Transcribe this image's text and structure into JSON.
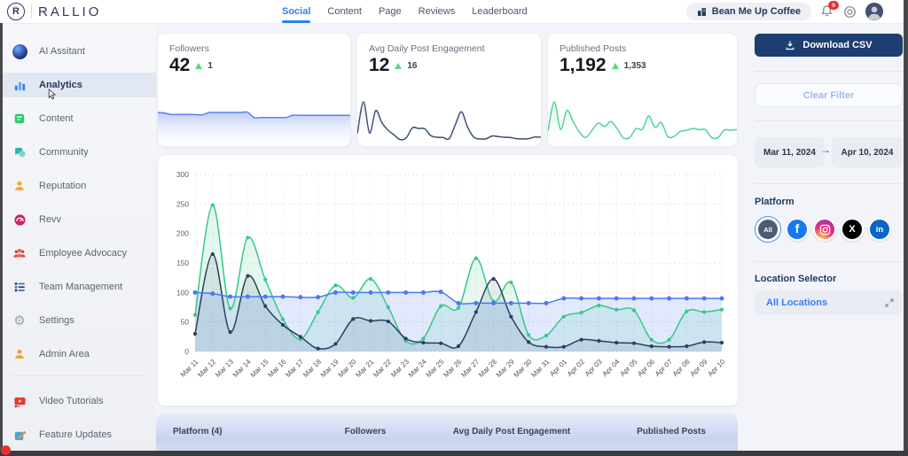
{
  "topbar": {
    "brand": "RALLIO",
    "logo_letter": "R",
    "tabs": [
      {
        "label": "Social",
        "active": true
      },
      {
        "label": "Content",
        "active": false
      },
      {
        "label": "Page",
        "active": false
      },
      {
        "label": "Reviews",
        "active": false
      },
      {
        "label": "Leaderboard",
        "active": false
      }
    ],
    "account_button": "Bean Me Up Coffee",
    "notification_count": "9"
  },
  "sidebar": {
    "items": [
      {
        "label": "AI Assitant",
        "icon": "ai-orb",
        "active": false
      },
      {
        "label": "Analytics",
        "icon": "bar-chart",
        "active": true
      },
      {
        "label": "Content",
        "icon": "green-note",
        "active": false
      },
      {
        "label": "Community",
        "icon": "chat-bubbles",
        "active": false
      },
      {
        "label": "Reputation",
        "icon": "person-orange",
        "active": false
      },
      {
        "label": "Revv",
        "icon": "gauge-pink",
        "active": false
      },
      {
        "label": "Employee Advocacy",
        "icon": "people-red",
        "active": false
      },
      {
        "label": "Team Management",
        "icon": "list-navy",
        "active": false
      },
      {
        "label": "Settings",
        "icon": "gear",
        "active": false
      },
      {
        "label": "Admin Area",
        "icon": "person-orange",
        "active": false
      },
      {
        "label": "Video Tutorials",
        "icon": "video-red",
        "active": false
      },
      {
        "label": "Feature Updates",
        "icon": "pencil-square",
        "active": false
      }
    ]
  },
  "cards": [
    {
      "title": "Followers",
      "value": "42",
      "delta": "1"
    },
    {
      "title": "Avg Daily Post Engagement",
      "value": "12",
      "delta": "16"
    },
    {
      "title": "Published Posts",
      "value": "1,192",
      "delta": "1,353"
    }
  ],
  "chart_data": {
    "type": "line",
    "x": [
      "Mar 11",
      "Mar 12",
      "Mar 13",
      "Mar 14",
      "Mar 15",
      "Mar 16",
      "Mar 17",
      "Mar 18",
      "Mar 19",
      "Mar 20",
      "Mar 21",
      "Mar 22",
      "Mar 23",
      "Mar 24",
      "Mar 25",
      "Mar 26",
      "Mar 27",
      "Mar 28",
      "Mar 29",
      "Mar 30",
      "Mar 31",
      "Apr 01",
      "Apr 02",
      "Apr 03",
      "Apr 04",
      "Apr 05",
      "Apr 06",
      "Apr 07",
      "Apr 08",
      "Apr 09",
      "Apr 10"
    ],
    "series": [
      {
        "name": "Published Posts",
        "color": "#36c987",
        "values": [
          62,
          248,
          73,
          193,
          122,
          55,
          21,
          67,
          112,
          91,
          123,
          75,
          18,
          22,
          77,
          74,
          158,
          85,
          117,
          28,
          27,
          59,
          66,
          78,
          71,
          70,
          20,
          20,
          68,
          67,
          71
        ]
      },
      {
        "name": "Avg Daily Post Engagement",
        "color": "#2d3f5e",
        "values": [
          30,
          165,
          33,
          128,
          77,
          45,
          25,
          5,
          13,
          55,
          52,
          51,
          22,
          15,
          14,
          9,
          67,
          123,
          59,
          16,
          8,
          8,
          20,
          18,
          15,
          14,
          9,
          8,
          9,
          16,
          15
        ]
      },
      {
        "name": "Followers",
        "color": "#4a7af0",
        "values": [
          100,
          98,
          93,
          93,
          93,
          93,
          92,
          92,
          100,
          100,
          100,
          100,
          100,
          100,
          101,
          82,
          82,
          82,
          82,
          82,
          82,
          90,
          90,
          90,
          90,
          90,
          90,
          90,
          90,
          90,
          90
        ]
      }
    ],
    "ylim": [
      0,
      300
    ],
    "yticks": [
      0,
      50,
      100,
      150,
      200,
      250,
      300
    ],
    "grid": true,
    "legend": "none",
    "title": "",
    "xlabel": "",
    "ylabel": ""
  },
  "table": {
    "headers": [
      "Platform (4)",
      "Followers",
      "Avg Daily Post Engagement",
      "Published Posts"
    ]
  },
  "right_panel": {
    "download_button": "Download CSV",
    "clear_filter_button": "Clear Filter",
    "date_from": "Mar 11, 2024",
    "date_to": "Apr 10, 2024",
    "platform_label": "Platform",
    "platforms": [
      {
        "name": "all",
        "label": "All",
        "selected": true
      },
      {
        "name": "facebook",
        "label": "f",
        "selected": false
      },
      {
        "name": "instagram",
        "label": "",
        "selected": false
      },
      {
        "name": "x",
        "label": "X",
        "selected": false
      },
      {
        "name": "linkedin",
        "label": "in",
        "selected": false
      }
    ],
    "location_label": "Location Selector",
    "location_value": "All Locations"
  }
}
